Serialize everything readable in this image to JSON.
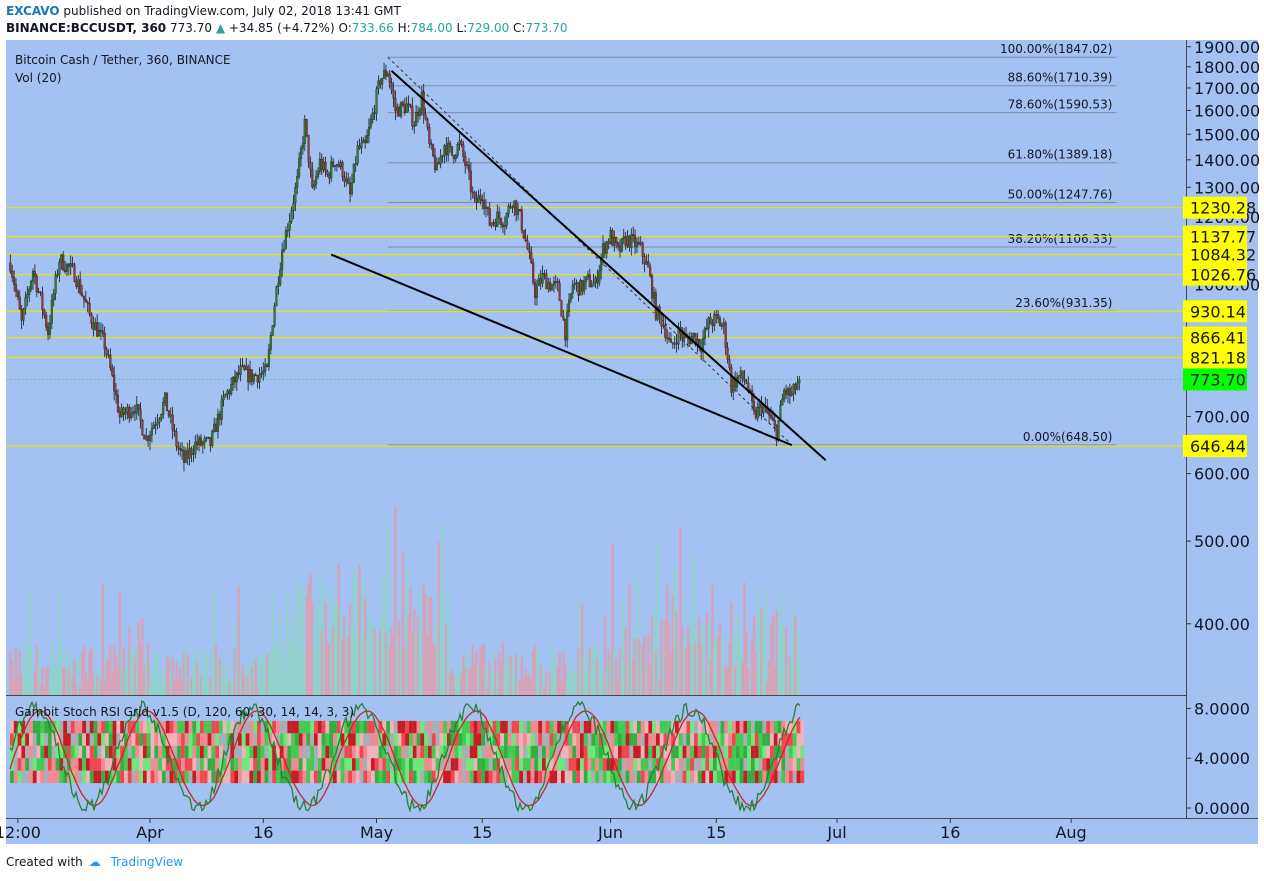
{
  "header": {
    "author": "EXCAVO",
    "published": "published on TradingView.com, July 02, 2018 13:41 GMT",
    "symbol": "BINANCE:BCCUSDT, 360",
    "last": "773.70",
    "change": "+34.85 (+4.72%)",
    "o_label": "O:",
    "o": "733.66",
    "h_label": "H:",
    "h": "784.00",
    "l_label": "L:",
    "l": "729.00",
    "c_label": "C:",
    "c": "773.70"
  },
  "footer": {
    "created": "Created with",
    "brand": "TradingView"
  },
  "colors": {
    "background": "#a3c1f1",
    "up": "#2e7d32",
    "down": "#8e3b3b",
    "fib": "#7f8fa8",
    "hline": "#e8e600",
    "label_yellow": "#ffff00",
    "label_green": "#00ff00"
  },
  "chart_data": {
    "type": "candlestick",
    "title": "Bitcoin Cash / Tether, 360, BINANCE",
    "volume_label": "Vol (20)",
    "price_axis": {
      "ylim": [
        330,
        1935
      ],
      "ticks": [
        "1900.00",
        "1800.00",
        "1700.00",
        "1600.00",
        "1500.00",
        "1400.00",
        "1300.00",
        "1200.00",
        "1000.00",
        "700.00",
        "600.00",
        "500.00",
        "400.00"
      ]
    },
    "time_axis": {
      "ticks": [
        {
          "label": "12:00",
          "day": -17.5
        },
        {
          "label": "Apr",
          "day": 0
        },
        {
          "label": "16",
          "day": 15
        },
        {
          "label": "May",
          "day": 30
        },
        {
          "label": "15",
          "day": 44
        },
        {
          "label": "Jun",
          "day": 61
        },
        {
          "label": "15",
          "day": 75
        },
        {
          "label": "Jul",
          "day": 91
        },
        {
          "label": "16",
          "day": 106
        },
        {
          "label": "Aug",
          "day": 122
        }
      ]
    },
    "price_path": [
      {
        "day": -18.5,
        "price": 1060
      },
      {
        "day": -17,
        "price": 900
      },
      {
        "day": -15.5,
        "price": 1040
      },
      {
        "day": -13.5,
        "price": 880
      },
      {
        "day": -12,
        "price": 1070
      },
      {
        "day": -10,
        "price": 1030
      },
      {
        "day": -8,
        "price": 920
      },
      {
        "day": -6,
        "price": 850
      },
      {
        "day": -4,
        "price": 700
      },
      {
        "day": -2,
        "price": 720
      },
      {
        "day": -0.5,
        "price": 660
      },
      {
        "day": 1,
        "price": 700
      },
      {
        "day": 2,
        "price": 730
      },
      {
        "day": 3.5,
        "price": 650
      },
      {
        "day": 4.5,
        "price": 620
      },
      {
        "day": 6,
        "price": 650
      },
      {
        "day": 8,
        "price": 650
      },
      {
        "day": 10,
        "price": 740
      },
      {
        "day": 12,
        "price": 790
      },
      {
        "day": 13.5,
        "price": 780
      },
      {
        "day": 15.5,
        "price": 790
      },
      {
        "day": 16.5,
        "price": 950
      },
      {
        "day": 17.5,
        "price": 1100
      },
      {
        "day": 18.5,
        "price": 1200
      },
      {
        "day": 19.5,
        "price": 1320
      },
      {
        "day": 20.5,
        "price": 1540
      },
      {
        "day": 21.5,
        "price": 1280
      },
      {
        "day": 22.5,
        "price": 1390
      },
      {
        "day": 23.5,
        "price": 1340
      },
      {
        "day": 24.5,
        "price": 1400
      },
      {
        "day": 25.5,
        "price": 1360
      },
      {
        "day": 26.5,
        "price": 1270
      },
      {
        "day": 27.5,
        "price": 1440
      },
      {
        "day": 28.5,
        "price": 1450
      },
      {
        "day": 29.5,
        "price": 1580
      },
      {
        "day": 30.5,
        "price": 1740
      },
      {
        "day": 31.5,
        "price": 1780
      },
      {
        "day": 32.5,
        "price": 1600
      },
      {
        "day": 34,
        "price": 1620
      },
      {
        "day": 35,
        "price": 1550
      },
      {
        "day": 36,
        "price": 1660
      },
      {
        "day": 37,
        "price": 1450
      },
      {
        "day": 38,
        "price": 1360
      },
      {
        "day": 39,
        "price": 1460
      },
      {
        "day": 40,
        "price": 1420
      },
      {
        "day": 41,
        "price": 1460
      },
      {
        "day": 42,
        "price": 1360
      },
      {
        "day": 43,
        "price": 1240
      },
      {
        "day": 44,
        "price": 1280
      },
      {
        "day": 45,
        "price": 1180
      },
      {
        "day": 46,
        "price": 1200
      },
      {
        "day": 47,
        "price": 1190
      },
      {
        "day": 48,
        "price": 1260
      },
      {
        "day": 49,
        "price": 1200
      },
      {
        "day": 50,
        "price": 1100
      },
      {
        "day": 51,
        "price": 980
      },
      {
        "day": 52,
        "price": 1020
      },
      {
        "day": 53,
        "price": 1000
      },
      {
        "day": 54,
        "price": 990
      },
      {
        "day": 55,
        "price": 880
      },
      {
        "day": 56,
        "price": 1000
      },
      {
        "day": 57,
        "price": 990
      },
      {
        "day": 58,
        "price": 1010
      },
      {
        "day": 59,
        "price": 1000
      },
      {
        "day": 60,
        "price": 1100
      },
      {
        "day": 61,
        "price": 1140
      },
      {
        "day": 62,
        "price": 1090
      },
      {
        "day": 63,
        "price": 1130
      },
      {
        "day": 64,
        "price": 1120
      },
      {
        "day": 65,
        "price": 1100
      },
      {
        "day": 66,
        "price": 1040
      },
      {
        "day": 67,
        "price": 930
      },
      {
        "day": 68,
        "price": 900
      },
      {
        "day": 69,
        "price": 840
      },
      {
        "day": 70,
        "price": 880
      },
      {
        "day": 71,
        "price": 860
      },
      {
        "day": 72,
        "price": 870
      },
      {
        "day": 73,
        "price": 850
      },
      {
        "day": 74,
        "price": 900
      },
      {
        "day": 75,
        "price": 910
      },
      {
        "day": 76,
        "price": 890
      },
      {
        "day": 77,
        "price": 760
      },
      {
        "day": 78,
        "price": 780
      },
      {
        "day": 79,
        "price": 770
      },
      {
        "day": 80,
        "price": 700
      },
      {
        "day": 81,
        "price": 720
      },
      {
        "day": 82,
        "price": 700
      },
      {
        "day": 83,
        "price": 670
      },
      {
        "day": 84,
        "price": 750
      },
      {
        "day": 85,
        "price": 740
      },
      {
        "day": 86,
        "price": 773.7
      }
    ],
    "fib_levels": [
      {
        "label": "100.00%(1847.02)",
        "price": 1847.02
      },
      {
        "label": "88.60%(1710.39)",
        "price": 1710.39
      },
      {
        "label": "78.60%(1590.53)",
        "price": 1590.53
      },
      {
        "label": "61.80%(1389.18)",
        "price": 1389.18
      },
      {
        "label": "50.00%(1247.76)",
        "price": 1247.76
      },
      {
        "label": "38.20%(1106.33)",
        "price": 1106.33
      },
      {
        "label": "23.60%(931.35)",
        "price": 931.35
      },
      {
        "label": "0.00%(648.50)",
        "price": 648.5
      }
    ],
    "fib_range": {
      "start_day": 31.5,
      "end_day": 128
    },
    "horizontal_levels": [
      {
        "label": "1230.28",
        "price": 1230.28
      },
      {
        "label": "1137.77",
        "price": 1137.77
      },
      {
        "label": "1084.32",
        "price": 1084.32
      },
      {
        "label": "1026.76",
        "price": 1026.76
      },
      {
        "label": "930.14",
        "price": 930.14
      },
      {
        "label": "866.41",
        "price": 866.41
      },
      {
        "label": "821.18",
        "price": 821.18
      },
      {
        "label": "646.44",
        "price": 646.44
      }
    ],
    "last_price": {
      "label": "773.70",
      "price": 773.7
    },
    "trendlines": [
      {
        "name": "upper",
        "from": {
          "day": 32,
          "price": 1780
        },
        "to": {
          "day": 89.5,
          "price": 622
        }
      },
      {
        "name": "lower",
        "from": {
          "day": 24,
          "price": 1084
        },
        "to": {
          "day": 85,
          "price": 648
        }
      }
    ],
    "fib_diagonal": {
      "from": {
        "day": 31.5,
        "price": 1847
      },
      "to": {
        "day": 85,
        "price": 648.5
      }
    },
    "indicator": {
      "label": "Gambit Stoch RSI Grid v1.5 (D, 120, 60, 30, 14, 14, 3, 3)",
      "ylim": [
        -0.8,
        9
      ],
      "ticks": [
        "8.0000",
        "4.0000",
        "0.0000"
      ]
    }
  }
}
